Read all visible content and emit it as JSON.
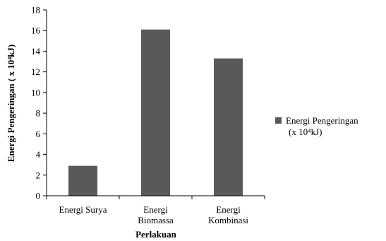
{
  "chart_data": {
    "type": "bar",
    "categories": [
      [
        "Energi Surya"
      ],
      [
        "Energi",
        "Biomassa"
      ],
      [
        "Energi",
        "Kombinasi"
      ]
    ],
    "series": [
      {
        "name": "Energi Pengeringan (x 10⁴kJ)",
        "legend_lines": [
          "Energi Pengeringan",
          "(x 10⁴kJ)"
        ],
        "values": [
          2.9,
          16.1,
          13.3
        ],
        "color": "#595959"
      }
    ],
    "title": "",
    "xlabel": "Perlakuan",
    "ylabel": "Energi Pengeringan ( x 10⁴kJ)",
    "ylim": [
      0,
      18
    ],
    "yticks": [
      0,
      2,
      4,
      6,
      8,
      10,
      12,
      14,
      16,
      18
    ],
    "grid": false,
    "legend_position": "right"
  }
}
